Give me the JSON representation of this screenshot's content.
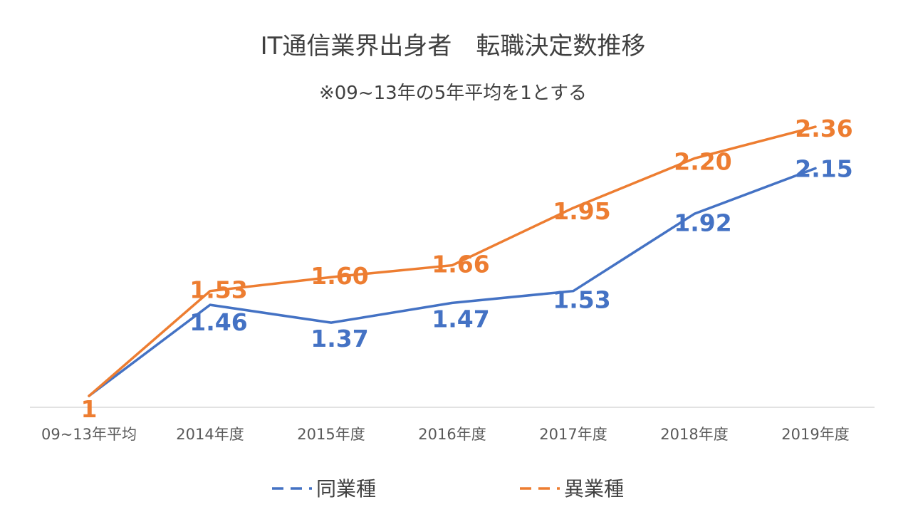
{
  "chart_data": {
    "type": "line",
    "title": "IT通信業界出身者　転職決定数推移",
    "subtitle": "※09~13年の5年平均を1とする",
    "categories": [
      "09~13年平均",
      "2014年度",
      "2015年度",
      "2016年度",
      "2017年度",
      "2018年度",
      "2019年度"
    ],
    "series": [
      {
        "name": "同業種",
        "color": "#4472C4",
        "values": [
          1,
          1.46,
          1.37,
          1.47,
          1.53,
          1.92,
          2.15
        ],
        "labels": [
          "",
          "1.46",
          "1.37",
          "1.47",
          "1.53",
          "1.92",
          "2.15"
        ]
      },
      {
        "name": "異業種",
        "color": "#ED7D31",
        "values": [
          1,
          1.53,
          1.6,
          1.66,
          1.95,
          2.2,
          2.36
        ],
        "labels": [
          "1",
          "1.53",
          "1.60",
          "1.66",
          "1.95",
          "2.20",
          "2.36"
        ]
      }
    ],
    "ylim": [
      1,
      2.36
    ],
    "grid": false,
    "legend": "bottom"
  }
}
